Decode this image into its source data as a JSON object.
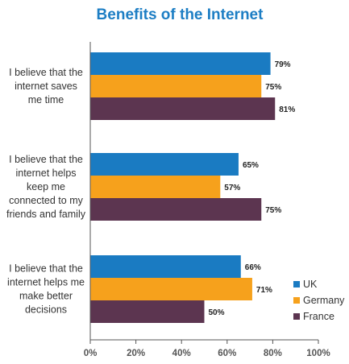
{
  "chart_data": {
    "type": "bar",
    "orientation": "horizontal",
    "title": "Benefits of the Internet",
    "title_color": "#1d7ec4",
    "categories": [
      [
        "I believe that the",
        "internet saves",
        "me time"
      ],
      [
        "I believe that the",
        "internet helps",
        "keep me",
        "connected to my",
        "friends and family"
      ],
      [
        "I believe that the",
        "internet helps me",
        "make better",
        "decisions"
      ]
    ],
    "series": [
      {
        "name": "UK",
        "color": "#1a7bc2",
        "values": [
          79,
          65,
          66
        ]
      },
      {
        "name": "Germany",
        "color": "#f6a11c",
        "values": [
          75,
          57,
          71
        ]
      },
      {
        "name": "France",
        "color": "#5c3550",
        "values": [
          81,
          75,
          50
        ]
      }
    ],
    "value_suffix": "%",
    "xlim": [
      0,
      100
    ],
    "xticks": [
      0,
      20,
      40,
      60,
      80,
      100
    ],
    "tick_labels": [
      "0%",
      "20%",
      "40%",
      "60%",
      "80%",
      "100%"
    ],
    "legend_position": "bottom-right",
    "grid": false
  }
}
